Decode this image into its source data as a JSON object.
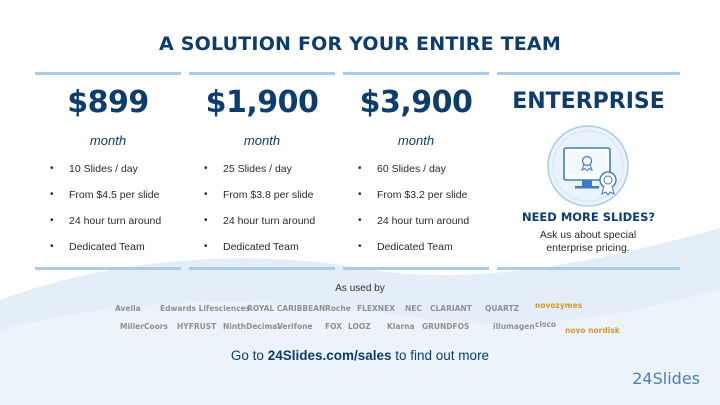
{
  "title": "A SOLUTION FOR YOUR ENTIRE TEAM",
  "plans": [
    {
      "price": "$899",
      "period": "month",
      "features": [
        "10 Slides / day",
        "From $4.5 per slide",
        "24 hour turn around",
        "Dedicated Team"
      ]
    },
    {
      "price": "$1,900",
      "period": "month",
      "features": [
        "25 Slides / day",
        "From $3.8 per slide",
        "24 hour turn around",
        "Dedicated Team"
      ]
    },
    {
      "price": "$3,900",
      "period": "month",
      "features": [
        "60 Slides / day",
        "From $3.2 per slide",
        "24 hour turn around",
        "Dedicated Team"
      ]
    }
  ],
  "enterprise": {
    "title": "ENTERPRISE",
    "subtitle": "NEED MORE SLIDES?",
    "description": "Ask us about special enterprise pricing.",
    "icon": "certified-monitor-icon"
  },
  "as_used_by": "As used by",
  "logos": [
    "Avella",
    "Edwards Lifesciences",
    "ROYAL CARIBBEAN",
    "Roche",
    "FLEXNEX",
    "NEC",
    "CLARIANT",
    "QUARTZ",
    "novozymes",
    "MillerCoors",
    "HYFRUST",
    "NinthDecimal",
    "Verifone",
    "FOX",
    "LOOZ",
    "Klarna",
    "GRUNDFOS",
    "illumagen",
    "cisco",
    "novo nordisk"
  ],
  "footer": {
    "prefix": "Go to ",
    "link": "24Slides.com/sales",
    "suffix": " to find out more"
  },
  "brand": "24Slides",
  "colors": {
    "primary": "#0d3c6e",
    "accent_bar": "#a9ccec",
    "wave": "#e4eef8"
  }
}
